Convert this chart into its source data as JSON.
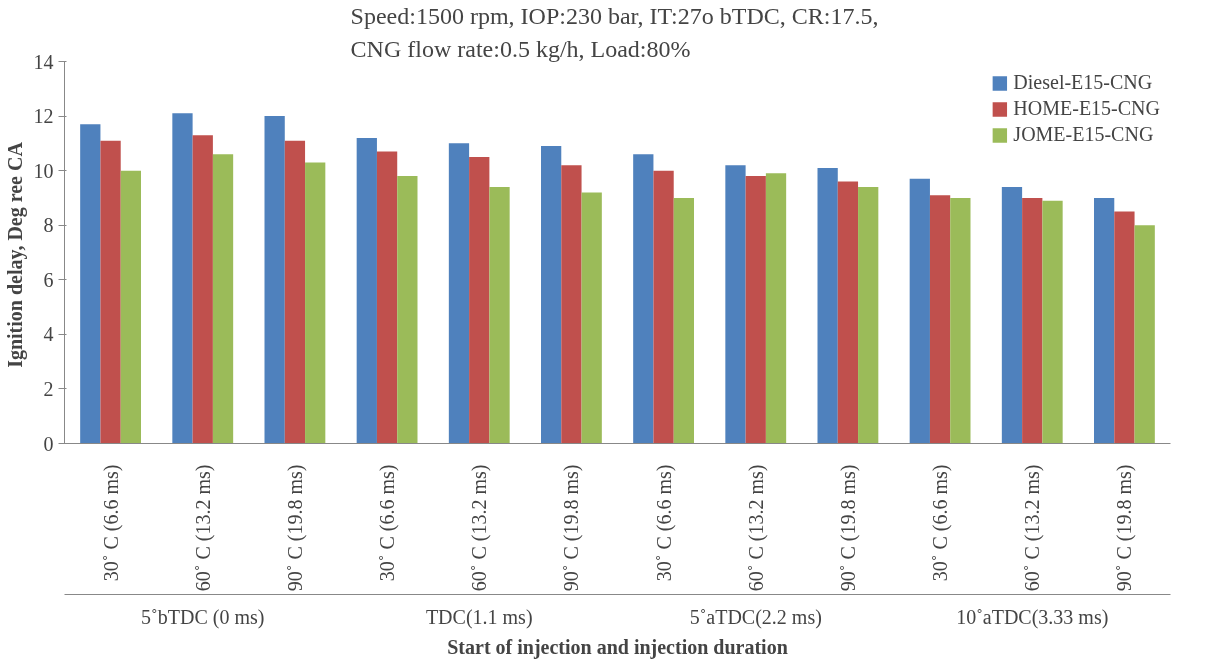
{
  "chart_data": {
    "type": "bar",
    "title": "Speed:1500 rpm, IOP:230 bar, IT:27o  bTDC, CR:17.5,\nCNG flow rate:0.5 kg/h, Load:80%",
    "xlabel": "Start of injection and injection duration",
    "ylabel": "Ignition delay, Deg ree  CA",
    "categories": [
      "30˚ C   (6.6 ms)",
      "60˚ C   (13.2 ms)",
      "90˚ C   (19.8 ms)",
      "30˚ C   (6.6 ms)",
      "60˚ C   (13.2 ms)",
      "90˚ C   (19.8 ms)",
      "30˚ C   (6.6 ms)",
      "60˚ C   (13.2 ms)",
      "90˚ C   (19.8 ms)",
      "30˚ C   (6.6 ms)",
      "60˚ C   (13.2 ms)",
      "90˚ C   (19.8 ms)"
    ],
    "annotations": [
      "5˚bTDC (0 ms)",
      "TDC(1.1 ms)",
      "5˚aTDC(2.2 ms)",
      "10˚aTDC(3.33 ms)"
    ],
    "series": [
      {
        "name": "Diesel-E15-CNG",
        "color": "#4f81bd",
        "values": [
          11.7,
          12.1,
          12.0,
          11.2,
          11.0,
          10.9,
          10.6,
          10.2,
          10.1,
          9.7,
          9.4,
          9.0
        ]
      },
      {
        "name": "HOME-E15-CNG",
        "color": "#c0504d",
        "values": [
          11.1,
          11.3,
          11.1,
          10.7,
          10.5,
          10.2,
          10.0,
          9.8,
          9.6,
          9.1,
          9.0,
          8.5
        ]
      },
      {
        "name": "JOME-E15-CNG",
        "color": "#9bbb59",
        "values": [
          10.0,
          10.6,
          10.3,
          9.8,
          9.4,
          9.2,
          9.0,
          9.9,
          9.4,
          9.0,
          8.9,
          8.0
        ]
      }
    ],
    "ylim": [
      0,
      14
    ],
    "yticks": [
      0,
      2,
      4,
      6,
      8,
      10,
      12,
      14
    ],
    "legend": "top right",
    "grid": false
  }
}
